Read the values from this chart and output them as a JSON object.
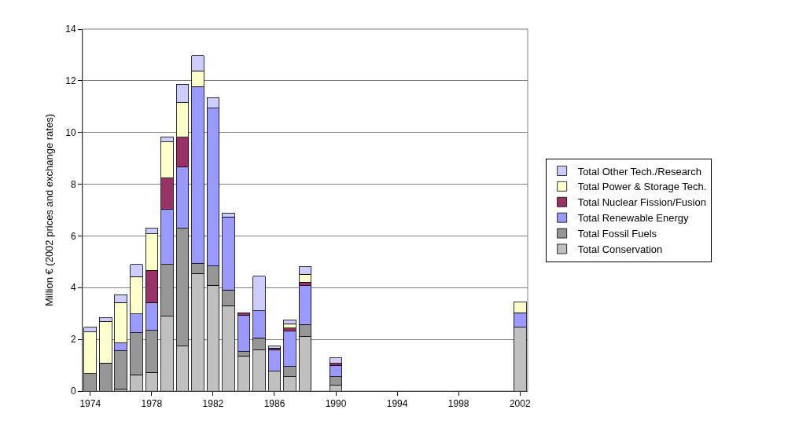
{
  "chart_data": {
    "type": "bar",
    "stacked": true,
    "categories": [
      "1974",
      null,
      null,
      null,
      "1978",
      null,
      null,
      null,
      "1982",
      null,
      null,
      null,
      "1986",
      null,
      null,
      null,
      "1990",
      null,
      null,
      null,
      "1994",
      null,
      null,
      null,
      "1998",
      null,
      null,
      null,
      "2002"
    ],
    "ylabel": "Million € (2002 prices and exchange rates)",
    "ylim": [
      0,
      14
    ],
    "yticks": [
      0,
      2,
      4,
      6,
      8,
      10,
      12,
      14
    ],
    "grid": "y",
    "legend": "right",
    "series": [
      {
        "name": "Total Conservation",
        "color": "#c0c0c0",
        "values": [
          null,
          null,
          0.08,
          0.63,
          0.72,
          2.89,
          1.74,
          4.55,
          4.09,
          3.3,
          1.36,
          1.59,
          0.77,
          0.55,
          2.1,
          null,
          0.22,
          null,
          null,
          null,
          null,
          null,
          null,
          null,
          null,
          null,
          null,
          null,
          2.47
        ]
      },
      {
        "name": "Total Fossil Fuels",
        "color": "#969696",
        "values": [
          0.67,
          1.08,
          1.48,
          1.62,
          1.62,
          2.01,
          4.55,
          0.37,
          0.74,
          0.61,
          0.17,
          0.47,
          null,
          0.4,
          0.47,
          null,
          0.33,
          null,
          null,
          null,
          null,
          null,
          null,
          null,
          null,
          null,
          null,
          null,
          null
        ]
      },
      {
        "name": "Total Renewable Energy",
        "color": "#9999ff",
        "values": [
          null,
          null,
          0.3,
          0.73,
          1.09,
          2.12,
          2.37,
          6.86,
          6.11,
          2.83,
          1.39,
          1.05,
          0.82,
          1.37,
          1.5,
          null,
          0.45,
          null,
          null,
          null,
          null,
          null,
          null,
          null,
          null,
          null,
          null,
          null,
          0.56
        ]
      },
      {
        "name": "Total Nuclear Fission/Fusion",
        "color": "#993366",
        "values": [
          null,
          null,
          null,
          null,
          1.24,
          1.22,
          1.15,
          null,
          null,
          null,
          0.11,
          null,
          0.07,
          0.12,
          0.14,
          null,
          0.07,
          null,
          null,
          null,
          null,
          null,
          null,
          null,
          null,
          null,
          null,
          null,
          null
        ]
      },
      {
        "name": "Total Power & Storage Tech.",
        "color": "#ffffcc",
        "values": [
          1.62,
          1.61,
          1.57,
          1.45,
          1.41,
          1.4,
          1.34,
          0.61,
          null,
          null,
          null,
          null,
          null,
          0.16,
          0.31,
          null,
          null,
          null,
          null,
          null,
          null,
          null,
          null,
          null,
          null,
          null,
          null,
          null,
          0.42
        ]
      },
      {
        "name": "Total Other Tech./Research",
        "color": "#ccccff",
        "values": [
          0.18,
          0.16,
          0.3,
          0.47,
          0.21,
          0.19,
          0.71,
          0.58,
          0.41,
          0.15,
          null,
          1.33,
          0.08,
          0.15,
          0.3,
          null,
          0.21,
          null,
          null,
          null,
          null,
          null,
          null,
          null,
          null,
          null,
          null,
          null,
          null
        ]
      }
    ]
  }
}
